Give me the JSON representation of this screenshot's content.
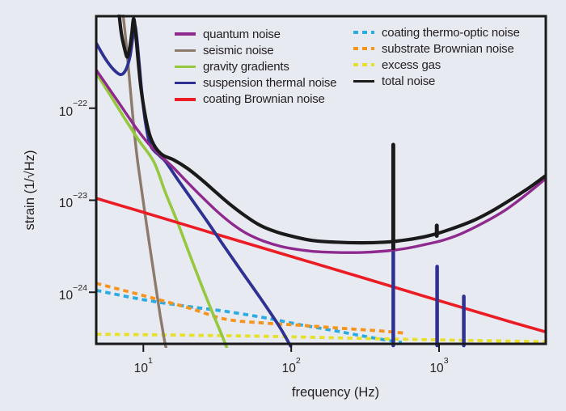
{
  "figure": {
    "background": "#e8eaf2",
    "text_color": "#231f20",
    "border_color": "#1a1a1a"
  },
  "chart_data": {
    "type": "line",
    "title": "",
    "xlabel": "frequency (Hz)",
    "ylabel": "strain (1/√Hz)",
    "x_scale": "log",
    "y_scale": "log",
    "x_range": [
      4.8,
      5270
    ],
    "y_range": [
      2.75e-25,
      1e-21
    ],
    "grid": false,
    "legend_position": "inside-top, two columns",
    "x_ticks": [
      {
        "value": 10,
        "base": "10",
        "exp": "1"
      },
      {
        "value": 100,
        "base": "10",
        "exp": "2"
      },
      {
        "value": 1000,
        "base": "10",
        "exp": "3"
      }
    ],
    "y_ticks": [
      {
        "value": 1e-22,
        "base": "10",
        "exp": "−22"
      },
      {
        "value": 1e-23,
        "base": "10",
        "exp": "−23"
      },
      {
        "value": 1e-24,
        "base": "10",
        "exp": "−24"
      }
    ],
    "legend_columns": [
      [
        "quantum noise",
        "seismic noise",
        "gravity gradients",
        "suspension thermal noise",
        "coating Brownian noise"
      ],
      [
        "coating thermo-optic noise",
        "substrate Brownian noise",
        "excess gas",
        "total noise"
      ]
    ],
    "draw_order": [
      "coating thermo-optic noise",
      "substrate Brownian noise",
      "excess gas",
      "seismic noise",
      "gravity gradients",
      "coating Brownian noise",
      "suspension thermal noise",
      "quantum noise",
      "total noise"
    ],
    "series": [
      {
        "name": "quantum noise",
        "color": "#8e2a8e",
        "style": "solid",
        "width": 3.4,
        "points": [
          [
            4.8,
            2.6e-22
          ],
          [
            6,
            1.55e-22
          ],
          [
            7.5,
            9.2e-23
          ],
          [
            9,
            6e-23
          ],
          [
            11,
            4e-23
          ],
          [
            13.5,
            2.9e-23
          ],
          [
            16,
            2.25e-23
          ],
          [
            20,
            1.55e-23
          ],
          [
            25,
            1.08e-23
          ],
          [
            32,
            7.4e-24
          ],
          [
            40,
            5.5e-24
          ],
          [
            50,
            4.35e-24
          ],
          [
            65,
            3.6e-24
          ],
          [
            85,
            3.15e-24
          ],
          [
            110,
            2.92e-24
          ],
          [
            150,
            2.76e-24
          ],
          [
            220,
            2.7e-24
          ],
          [
            320,
            2.72e-24
          ],
          [
            450,
            2.82e-24
          ],
          [
            600,
            3e-24
          ],
          [
            800,
            3.3e-24
          ],
          [
            1050,
            3.65e-24
          ],
          [
            1400,
            4.3e-24
          ],
          [
            2000,
            5.7e-24
          ],
          [
            2800,
            7.8e-24
          ],
          [
            3800,
            1.12e-23
          ],
          [
            5270,
            1.72e-23
          ]
        ]
      },
      {
        "name": "seismic noise",
        "color": "#8c7b6b",
        "style": "solid",
        "width": 3.4,
        "points": [
          [
            7.25,
            1.15e-21
          ],
          [
            7.7,
            4.6e-22
          ],
          [
            8.28,
            1.25e-22
          ],
          [
            8.7,
            5.4e-23
          ],
          [
            9.16,
            2.6e-23
          ],
          [
            10,
            9.5e-24
          ],
          [
            11,
            3.3e-24
          ],
          [
            12,
            1.3e-24
          ],
          [
            13,
            5.6e-25
          ],
          [
            13.9,
            3e-25
          ],
          [
            14.4,
            2.3e-25
          ]
        ]
      },
      {
        "name": "gravity gradients",
        "color": "#95c83e",
        "style": "solid",
        "width": 3.6,
        "points": [
          [
            4.8,
            2.4e-22
          ],
          [
            6,
            1.37e-22
          ],
          [
            7.5,
            7.7e-23
          ],
          [
            9.3,
            4.5e-23
          ],
          [
            11.8,
            2.6e-23
          ],
          [
            14,
            1.25e-23
          ],
          [
            17,
            5.8e-24
          ],
          [
            20,
            2.9e-24
          ],
          [
            24,
            1.35e-24
          ],
          [
            29,
            6.3e-25
          ],
          [
            34,
            3.4e-25
          ],
          [
            37,
            2.4e-25
          ]
        ]
      },
      {
        "name": "suspension thermal noise",
        "color": "#2e3192",
        "style": "solid",
        "width": 3.8,
        "points": [
          [
            4.8,
            5.1e-22
          ],
          [
            5.5,
            3.5e-22
          ],
          [
            6.2,
            2.7e-22
          ],
          [
            7.0,
            2.32e-22
          ],
          [
            7.6,
            2.6e-22
          ],
          [
            8.1,
            3.6e-22
          ],
          [
            8.45,
            5.6e-22
          ],
          [
            8.75,
            8e-22
          ],
          [
            9.05,
            5.6e-22
          ],
          [
            9.4,
            2.9e-22
          ],
          [
            9.8,
            1.4e-22
          ],
          [
            10.4,
            6.6e-23
          ],
          [
            11.2,
            3.9e-23
          ],
          [
            13,
            3e-23
          ],
          [
            14.2,
            2.6e-23
          ],
          [
            17,
            1.7e-23
          ],
          [
            21,
            1.05e-23
          ],
          [
            27,
            5.9e-24
          ],
          [
            35,
            3.2e-24
          ],
          [
            46,
            1.7e-24
          ],
          [
            62,
            8.6e-25
          ],
          [
            82,
            4.4e-25
          ],
          [
            99,
            2.6e-25
          ]
        ],
        "spikes": [
          [
            490,
            3.4e-24
          ],
          [
            970,
            1.9e-24
          ],
          [
            1470,
            9e-25
          ]
        ]
      },
      {
        "name": "coating Brownian noise",
        "color": "#ec1c24",
        "style": "solid",
        "width": 3.6,
        "points": [
          [
            4.8,
            1.05e-23
          ],
          [
            10,
            7.4e-24
          ],
          [
            30,
            4.35e-24
          ],
          [
            100,
            2.45e-24
          ],
          [
            300,
            1.45e-24
          ],
          [
            1000,
            8.1e-25
          ],
          [
            3000,
            4.8e-25
          ],
          [
            5270,
            3.7e-25
          ]
        ]
      },
      {
        "name": "coating thermo-optic noise",
        "color": "#2aabe2",
        "style": "dashed",
        "width": 3.8,
        "points": [
          [
            4.8,
            1.05e-24
          ],
          [
            10,
            8.3e-25
          ],
          [
            20,
            7e-25
          ],
          [
            36,
            6.2e-25
          ],
          [
            70,
            5.2e-25
          ],
          [
            110,
            4.5e-25
          ],
          [
            200,
            3.8e-25
          ],
          [
            320,
            3.3e-25
          ],
          [
            480,
            2.95e-25
          ],
          [
            560,
            2.85e-25
          ]
        ]
      },
      {
        "name": "substrate Brownian noise",
        "color": "#f7941e",
        "style": "dashed",
        "width": 3.8,
        "points": [
          [
            4.8,
            1.25e-24
          ],
          [
            10,
            9.2e-25
          ],
          [
            20,
            6.8e-25
          ],
          [
            36,
            5.1e-25
          ],
          [
            70,
            4.6e-25
          ],
          [
            110,
            4.4e-25
          ],
          [
            200,
            4.1e-25
          ],
          [
            400,
            3.8e-25
          ],
          [
            580,
            3.6e-25
          ]
        ]
      },
      {
        "name": "excess gas",
        "color": "#e6e02a",
        "style": "dashed",
        "width": 3.8,
        "points": [
          [
            4.8,
            3.5e-25
          ],
          [
            50,
            3.35e-25
          ],
          [
            500,
            3.1e-25
          ],
          [
            5270,
            2.9e-25
          ]
        ]
      },
      {
        "name": "total noise",
        "color": "#1a1a1a",
        "style": "solid",
        "width": 4.2,
        "points": [
          [
            6.8,
            1.2e-21
          ],
          [
            7.1,
            6.5e-22
          ],
          [
            7.5,
            4.3e-22
          ],
          [
            7.8,
            3.6e-22
          ],
          [
            8.1,
            4.6e-22
          ],
          [
            8.35,
            6.5e-22
          ],
          [
            8.6,
            9.4e-22
          ],
          [
            8.9,
            6.2e-22
          ],
          [
            9.2,
            3.4e-22
          ],
          [
            9.6,
            1.75e-22
          ],
          [
            10.2,
            9e-23
          ],
          [
            11,
            5.2e-23
          ],
          [
            12,
            3.8e-23
          ],
          [
            13.5,
            3.1e-23
          ],
          [
            16,
            2.75e-23
          ],
          [
            20,
            2.2e-23
          ],
          [
            25,
            1.65e-23
          ],
          [
            31,
            1.22e-23
          ],
          [
            38,
            9.2e-24
          ],
          [
            48,
            6.9e-24
          ],
          [
            62,
            5.3e-24
          ],
          [
            80,
            4.5e-24
          ],
          [
            105,
            4e-24
          ],
          [
            140,
            3.65e-24
          ],
          [
            200,
            3.5e-24
          ],
          [
            300,
            3.45e-24
          ],
          [
            430,
            3.5e-24
          ],
          [
            520,
            3.6e-24
          ],
          [
            700,
            3.85e-24
          ],
          [
            900,
            4.2e-24
          ],
          [
            1200,
            4.85e-24
          ],
          [
            1700,
            6e-24
          ],
          [
            2300,
            7.7e-24
          ],
          [
            3100,
            1.03e-23
          ],
          [
            4100,
            1.38e-23
          ],
          [
            5270,
            1.85e-23
          ]
        ],
        "spikes": [
          [
            490,
            4e-23,
            3e-24
          ],
          [
            965,
            5.3e-24,
            4.1e-24
          ]
        ]
      }
    ]
  }
}
